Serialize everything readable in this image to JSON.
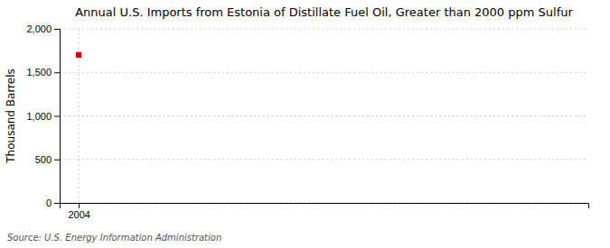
{
  "chart_data": {
    "type": "scatter",
    "title": "Annual U.S. Imports from Estonia of Distillate Fuel Oil, Greater than 2000 ppm Sulfur",
    "y_label": "Thousand Barrels",
    "annotations": [
      "Source: U.S. Energy Information Administration"
    ],
    "x": [
      2004
    ],
    "values": [
      1700
    ],
    "color": "#cc0000",
    "marker": "square",
    "xlim": [
      2003.4,
      2020
    ],
    "xticks": [
      2004
    ],
    "ylim": [
      0,
      2000
    ],
    "yticks": [
      0,
      500,
      {
        "value": 1000,
        "label": "1,000"
      },
      {
        "value": 1500,
        "label": "1,500"
      },
      {
        "value": 2000,
        "label": "2,000"
      }
    ],
    "grid": true
  }
}
